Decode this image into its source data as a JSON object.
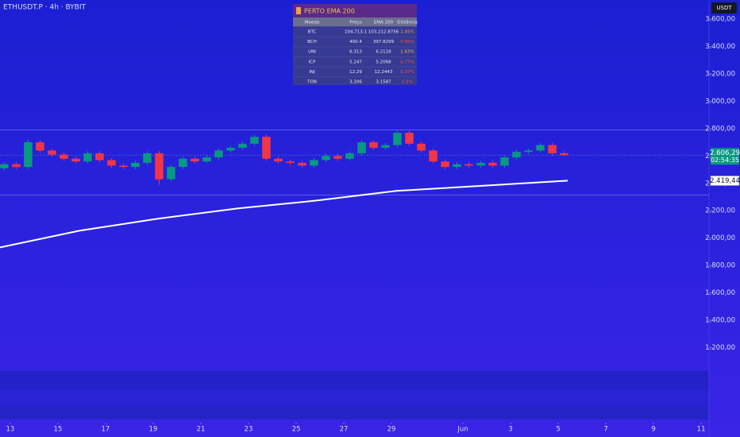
{
  "chart_data": {
    "type": "candlestick",
    "title": "ETHUSDT.P · 4h · BYBIT",
    "currency": "USDT",
    "xlim": [
      12.57,
      42.23
    ],
    "xticks": [
      13,
      15,
      17,
      19,
      21,
      23,
      25,
      27,
      29,
      {
        "value": 32,
        "label": "Jun"
      },
      {
        "value": 34,
        "label": "3"
      },
      {
        "value": 36,
        "label": "5"
      },
      {
        "value": 38,
        "label": "7"
      },
      {
        "value": 40,
        "label": "9"
      },
      {
        "value": 42,
        "label": "11"
      }
    ],
    "ylim": [
      1040,
      3740
    ],
    "yticks": [
      {
        "value": 1200,
        "label": "1.200,00"
      },
      {
        "value": 1400,
        "label": "1.400,00"
      },
      {
        "value": 1600,
        "label": "1.600,00"
      },
      {
        "value": 1800,
        "label": "1.800,00"
      },
      {
        "value": 2000,
        "label": "2.000,00"
      },
      {
        "value": 2200,
        "label": "2.200,00"
      },
      {
        "value": 2400,
        "label": "2.400,00"
      },
      {
        "value": 2600,
        "label": "2.600,00"
      },
      {
        "value": 2800,
        "label": "2.800,00"
      },
      {
        "value": 3000,
        "label": "3.000,00"
      },
      {
        "value": 3200,
        "label": "3.200,00"
      },
      {
        "value": 3400,
        "label": "3.400,00"
      },
      {
        "value": 3600,
        "label": "3.600,00"
      }
    ],
    "up_color": "#089981",
    "down_color": "#f23645",
    "levels": [
      2790,
      2315
    ],
    "last_price": {
      "value": 2606.29,
      "label": "2.606,29",
      "countdown": "02:54:35"
    },
    "candles": {
      "x": [
        12.75,
        13.25,
        13.75,
        14.25,
        14.75,
        15.25,
        15.75,
        16.25,
        16.75,
        17.25,
        17.75,
        18.25,
        18.75,
        19.25,
        19.75,
        20.25,
        20.75,
        21.25,
        21.75,
        22.25,
        22.75,
        23.25,
        23.75,
        24.25,
        24.75,
        25.25,
        25.75,
        26.25,
        26.75,
        27.25,
        27.75,
        28.25,
        28.75,
        29.25,
        29.75,
        30.25,
        30.75,
        31.25,
        31.75,
        32.25,
        32.75,
        33.25,
        33.75,
        34.25,
        34.75,
        35.25,
        35.75,
        36.25
      ],
      "open": [
        2510,
        2540,
        2520,
        2700,
        2640,
        2610,
        2580,
        2560,
        2620,
        2570,
        2530,
        2520,
        2550,
        2620,
        2430,
        2520,
        2580,
        2560,
        2590,
        2640,
        2660,
        2690,
        2740,
        2580,
        2560,
        2550,
        2530,
        2570,
        2600,
        2580,
        2620,
        2700,
        2660,
        2680,
        2770,
        2690,
        2640,
        2560,
        2520,
        2540,
        2530,
        2550,
        2530,
        2590,
        2630,
        2640,
        2680,
        2620
      ],
      "high": [
        2555,
        2555,
        2720,
        2715,
        2655,
        2625,
        2595,
        2635,
        2635,
        2585,
        2545,
        2565,
        2635,
        2635,
        2535,
        2595,
        2595,
        2605,
        2655,
        2675,
        2705,
        2755,
        2755,
        2595,
        2575,
        2565,
        2585,
        2615,
        2615,
        2635,
        2715,
        2715,
        2695,
        2785,
        2785,
        2705,
        2655,
        2575,
        2555,
        2555,
        2565,
        2565,
        2605,
        2645,
        2655,
        2695,
        2695,
        2635
      ],
      "low": [
        2495,
        2505,
        2505,
        2625,
        2595,
        2565,
        2545,
        2545,
        2555,
        2515,
        2505,
        2505,
        2535,
        2390,
        2415,
        2505,
        2545,
        2545,
        2575,
        2625,
        2645,
        2675,
        2565,
        2545,
        2535,
        2515,
        2515,
        2555,
        2565,
        2565,
        2605,
        2645,
        2645,
        2665,
        2675,
        2625,
        2545,
        2505,
        2505,
        2515,
        2515,
        2515,
        2515,
        2575,
        2615,
        2625,
        2605,
        2600
      ],
      "close": [
        2540,
        2520,
        2700,
        2640,
        2610,
        2580,
        2560,
        2620,
        2570,
        2530,
        2520,
        2550,
        2620,
        2430,
        2520,
        2580,
        2560,
        2590,
        2640,
        2660,
        2690,
        2740,
        2580,
        2560,
        2550,
        2530,
        2570,
        2600,
        2580,
        2620,
        2700,
        2660,
        2680,
        2770,
        2690,
        2640,
        2560,
        2520,
        2540,
        2530,
        2550,
        2530,
        2590,
        2630,
        2640,
        2680,
        2620,
        2606
      ]
    },
    "ema": {
      "color": "#ffffff",
      "x": [
        12.57,
        15.9,
        19.2,
        22.57,
        25.9,
        29.2,
        32.57,
        36.4
      ],
      "values": [
        1932,
        2054,
        2142,
        2217,
        2275,
        2345,
        2380,
        2419.44
      ],
      "value_label": "2.419,44"
    }
  },
  "table": {
    "title": "PERTO EMA 200",
    "headers": [
      "Moeda",
      "Preço",
      "EMA 200",
      "Distância"
    ],
    "rows": [
      [
        "BTC",
        "104,713.1",
        "103,212.8756",
        "1.45%"
      ],
      [
        "BCH",
        "400.4",
        "397.8299",
        "0.65%"
      ],
      [
        "UNI",
        "6.313",
        "6.2118",
        "1.63%"
      ],
      [
        "ICP",
        "5.247",
        "5.2068",
        "0.77%"
      ],
      [
        "INJ",
        "12.29",
        "12.2443",
        "0.37%"
      ],
      [
        "TON",
        "3.206",
        "3.1587",
        "1.5%"
      ]
    ]
  }
}
